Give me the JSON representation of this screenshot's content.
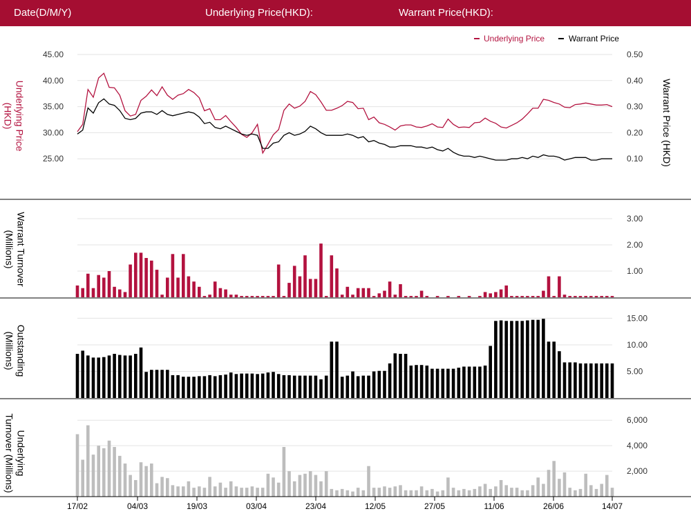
{
  "header": {
    "date_label": "Date(D/M/Y)",
    "underlying_label": "Underlying Price(HKD):",
    "warrant_label": "Warrant Price(HKD):"
  },
  "colors": {
    "header_bg": "#a50e32",
    "underlying": "#b3123f",
    "warrant": "#000000",
    "underlying_turnover": "#bdbdbd",
    "grid": "#e3e3e3"
  },
  "chart_data": [
    {
      "type": "line",
      "legend_position": "top-right",
      "grid": true,
      "series": [
        {
          "name": "Underlying Price",
          "axis": "left",
          "values": [
            30.2,
            31.6,
            38.3,
            36.8,
            40.5,
            41.4,
            38.7,
            38.6,
            37.2,
            34.2,
            33.2,
            33.5,
            36.2,
            37.0,
            38.2,
            37.1,
            38.8,
            37.2,
            36.4,
            37.2,
            37.5,
            38.3,
            37.7,
            36.7,
            34.2,
            34.6,
            32.5,
            32.5,
            33.3,
            32.1,
            31.0,
            29.7,
            29.1,
            30.0,
            31.6,
            26.1,
            27.8,
            29.6,
            30.6,
            34.3,
            35.5,
            34.7,
            35.1,
            36.0,
            37.9,
            37.3,
            35.9,
            34.3,
            34.3,
            34.7,
            35.2,
            36.0,
            35.8,
            34.6,
            34.7,
            32.5,
            33.0,
            31.9,
            31.6,
            31.1,
            30.5,
            31.3,
            31.5,
            31.5,
            31.1,
            31.0,
            31.3,
            31.7,
            31.1,
            31.0,
            32.6,
            31.6,
            31.0,
            31.1,
            31.0,
            31.9,
            32.0,
            32.8,
            32.2,
            31.8,
            31.1,
            30.9,
            31.4,
            31.9,
            32.6,
            33.6,
            34.7,
            34.7,
            36.4,
            36.2,
            35.8,
            35.5,
            34.9,
            34.8,
            35.4,
            35.5,
            35.7,
            35.5,
            35.3,
            35.3,
            35.4,
            35.0
          ]
        },
        {
          "name": "Warrant Price",
          "axis": "right",
          "values": [
            0.195,
            0.21,
            0.295,
            0.275,
            0.315,
            0.33,
            0.31,
            0.305,
            0.285,
            0.255,
            0.25,
            0.255,
            0.275,
            0.28,
            0.28,
            0.27,
            0.285,
            0.27,
            0.265,
            0.27,
            0.275,
            0.28,
            0.275,
            0.26,
            0.235,
            0.24,
            0.22,
            0.215,
            0.225,
            0.215,
            0.205,
            0.195,
            0.19,
            0.195,
            0.19,
            0.14,
            0.14,
            0.16,
            0.165,
            0.19,
            0.2,
            0.19,
            0.195,
            0.205,
            0.225,
            0.215,
            0.2,
            0.19,
            0.19,
            0.19,
            0.19,
            0.195,
            0.19,
            0.18,
            0.185,
            0.165,
            0.17,
            0.16,
            0.155,
            0.145,
            0.145,
            0.15,
            0.15,
            0.15,
            0.145,
            0.145,
            0.14,
            0.145,
            0.135,
            0.13,
            0.14,
            0.125,
            0.115,
            0.11,
            0.11,
            0.105,
            0.11,
            0.105,
            0.1,
            0.095,
            0.095,
            0.095,
            0.1,
            0.1,
            0.105,
            0.1,
            0.11,
            0.105,
            0.115,
            0.11,
            0.11,
            0.105,
            0.095,
            0.1,
            0.105,
            0.105,
            0.105,
            0.095,
            0.095,
            0.1,
            0.1,
            0.1
          ]
        }
      ],
      "ylabel_left": "Underlying Price (HKD)",
      "ylabel_right": "Warrant  Price (HKD)",
      "yticks_left": [
        "25.00",
        "30.00",
        "35.00",
        "40.00",
        "45.00"
      ],
      "yticks_right": [
        "0.10",
        "0.20",
        "0.30",
        "0.40",
        "0.50"
      ],
      "ylim_left": [
        20,
        45
      ],
      "ylim_right": [
        0,
        0.5
      ]
    },
    {
      "type": "bar",
      "grid": true,
      "series": [
        {
          "name": "",
          "values": [
            0.45,
            0.35,
            0.9,
            0.35,
            0.85,
            0.75,
            1.0,
            0.4,
            0.3,
            0.2,
            1.25,
            1.7,
            1.7,
            1.5,
            1.4,
            1.05,
            0.1,
            0.75,
            1.65,
            0.75,
            1.65,
            0.8,
            0.6,
            0.4,
            0.05,
            0.1,
            0.6,
            0.35,
            0.3,
            0.1,
            0.1,
            0.05,
            0.05,
            0.05,
            0.05,
            0.05,
            0.05,
            0.05,
            1.25,
            0.05,
            0.55,
            1.2,
            0.8,
            1.6,
            0.7,
            0.7,
            2.05,
            0.05,
            1.6,
            1.1,
            0.1,
            0.4,
            0.1,
            0.35,
            0.35,
            0.35,
            0.05,
            0.15,
            0.25,
            0.6,
            0.1,
            0.5,
            0.05,
            0.05,
            0.05,
            0.25,
            0.05,
            0.0,
            0.05,
            0.0,
            0.05,
            0.0,
            0.05,
            0.0,
            0.05,
            0.0,
            0.05,
            0.2,
            0.15,
            0.2,
            0.3,
            0.45,
            0.05,
            0.05,
            0.05,
            0.05,
            0.05,
            0.05,
            0.25,
            0.8,
            0.05,
            0.8,
            0.1,
            0.05,
            0.05,
            0.05,
            0.05,
            0.05,
            0.05,
            0.05,
            0.05,
            0.05
          ]
        }
      ],
      "ylabel": "Warrant  Turnover (Millions)",
      "yticks": [
        "1.00",
        "2.00",
        "3.00"
      ],
      "ylim": [
        0,
        3.5
      ]
    },
    {
      "type": "bar",
      "grid": true,
      "series": [
        {
          "name": "",
          "values": [
            8.3,
            8.9,
            8.0,
            7.6,
            7.6,
            7.7,
            8.0,
            8.3,
            8.1,
            8.0,
            8.0,
            8.3,
            9.5,
            4.9,
            5.3,
            5.3,
            5.3,
            5.3,
            4.3,
            4.3,
            4.0,
            4.0,
            4.0,
            4.1,
            4.1,
            4.3,
            4.1,
            4.3,
            4.4,
            4.8,
            4.5,
            4.6,
            4.6,
            4.6,
            4.5,
            4.6,
            4.8,
            4.9,
            4.5,
            4.3,
            4.3,
            4.2,
            4.2,
            4.2,
            4.2,
            4.2,
            3.5,
            4.2,
            10.6,
            10.6,
            4.0,
            4.2,
            5.0,
            4.1,
            4.2,
            4.2,
            5.0,
            5.1,
            5.1,
            6.5,
            8.4,
            8.3,
            8.3,
            6.1,
            6.2,
            6.2,
            6.1,
            5.5,
            5.5,
            5.5,
            5.5,
            5.5,
            5.7,
            5.9,
            5.9,
            5.9,
            5.9,
            6.1,
            9.8,
            14.5,
            14.6,
            14.5,
            14.5,
            14.5,
            14.5,
            14.6,
            14.7,
            14.7,
            14.9,
            10.6,
            10.6,
            8.8,
            6.7,
            6.7,
            6.7,
            6.5,
            6.5,
            6.5,
            6.5,
            6.5,
            6.5,
            6.5
          ]
        }
      ],
      "ylabel": "Outstanding (Millions)",
      "yticks": [
        "5.00",
        "10.00",
        "15.00"
      ],
      "ylim": [
        0,
        17
      ]
    },
    {
      "type": "bar",
      "grid": true,
      "series": [
        {
          "name": "",
          "values": [
            4900,
            2900,
            5600,
            3300,
            4000,
            3800,
            4400,
            3900,
            3200,
            2600,
            1700,
            1300,
            2700,
            2400,
            2600,
            1050,
            1550,
            1450,
            900,
            800,
            800,
            1200,
            700,
            800,
            700,
            1550,
            800,
            1100,
            700,
            1200,
            800,
            700,
            700,
            800,
            700,
            700,
            1800,
            1500,
            1100,
            3900,
            2000,
            1200,
            1700,
            1800,
            2000,
            1700,
            1200,
            2000,
            600,
            500,
            600,
            500,
            400,
            700,
            500,
            2400,
            700,
            700,
            800,
            700,
            800,
            900,
            500,
            500,
            500,
            800,
            500,
            600,
            400,
            500,
            1500,
            700,
            500,
            600,
            500,
            600,
            800,
            1000,
            600,
            800,
            1300,
            900,
            700,
            700,
            500,
            500,
            900,
            1500,
            1000,
            2100,
            2800,
            1400,
            1900,
            700,
            500,
            600,
            1800,
            900,
            600,
            1000,
            1700,
            700
          ]
        }
      ],
      "ylabel": "Underlying Turnover (Millions)",
      "yticks": [
        "2,000",
        "4,000",
        "6,000"
      ],
      "ylim": [
        0,
        6500
      ],
      "xticks": [
        "17/02",
        "04/03",
        "19/03",
        "03/04",
        "23/04",
        "12/05",
        "27/05",
        "11/06",
        "26/06",
        "14/07"
      ]
    }
  ]
}
